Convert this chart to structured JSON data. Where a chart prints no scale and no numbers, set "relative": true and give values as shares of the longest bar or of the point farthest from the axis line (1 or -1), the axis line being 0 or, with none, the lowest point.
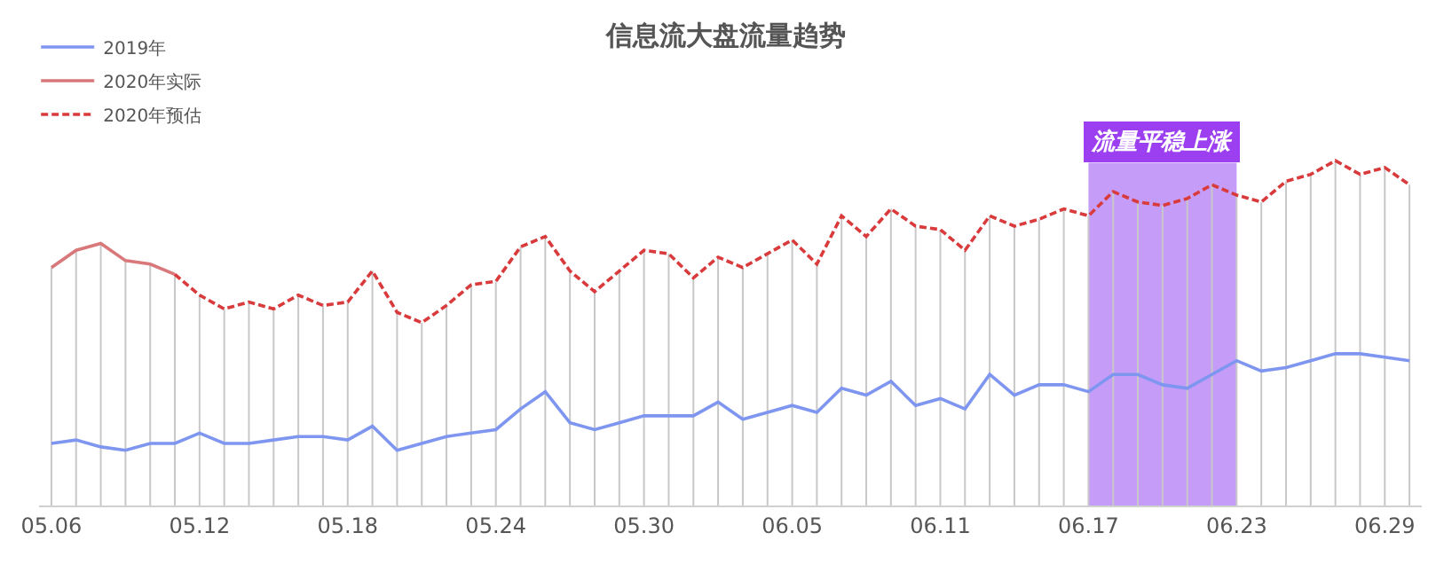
{
  "chart_data": {
    "type": "line",
    "title": "信息流大盘流量趋势",
    "relative": true,
    "categories": [
      "05.06",
      null,
      null,
      null,
      null,
      null,
      "05.12",
      null,
      null,
      null,
      null,
      null,
      "05.18",
      null,
      null,
      null,
      null,
      null,
      "05.24",
      null,
      null,
      null,
      null,
      null,
      "05.30",
      null,
      null,
      null,
      null,
      null,
      "06.05",
      null,
      null,
      null,
      null,
      null,
      "06.11",
      null,
      null,
      null,
      null,
      null,
      "06.17",
      null,
      null,
      null,
      null,
      null,
      "06.23",
      null,
      null,
      null,
      null,
      null,
      "06.29",
      null
    ],
    "series": [
      {
        "name": "2019年",
        "color": "#7f96f0",
        "line_style": "solid",
        "values": [
          0.18,
          0.19,
          0.17,
          0.16,
          0.18,
          0.18,
          0.21,
          0.18,
          0.18,
          0.19,
          0.2,
          0.2,
          0.19,
          0.23,
          0.16,
          0.18,
          0.2,
          0.21,
          0.22,
          0.28,
          0.33,
          0.24,
          0.22,
          0.24,
          0.26,
          0.26,
          0.26,
          0.3,
          0.25,
          0.27,
          0.29,
          0.27,
          0.34,
          0.32,
          0.36,
          0.29,
          0.31,
          0.28,
          0.38,
          0.32,
          0.35,
          0.35,
          0.33,
          0.38,
          0.38,
          0.35,
          0.34,
          0.38,
          0.42,
          0.39,
          0.4,
          0.42,
          0.44,
          0.44,
          0.43,
          0.42
        ]
      },
      {
        "name": "2020年实际",
        "color": "#d9787a",
        "line_style": "solid",
        "values": [
          0.69,
          0.74,
          0.76,
          0.71,
          0.7,
          0.67,
          null,
          null,
          null,
          null,
          null,
          null,
          null,
          null,
          null,
          null,
          null,
          null,
          null,
          null,
          null,
          null,
          null,
          null,
          null,
          null,
          null,
          null,
          null,
          null,
          null,
          null,
          null,
          null,
          null,
          null,
          null,
          null,
          null,
          null,
          null,
          null,
          null,
          null,
          null,
          null,
          null,
          null,
          null,
          null,
          null,
          null,
          null,
          null,
          null,
          null
        ]
      },
      {
        "name": "2020年预估",
        "color": "#d93a3c",
        "line_style": "dashed",
        "values": [
          null,
          null,
          null,
          null,
          null,
          0.67,
          0.61,
          0.57,
          0.59,
          0.57,
          0.61,
          0.58,
          0.59,
          0.68,
          0.56,
          0.53,
          0.58,
          0.64,
          0.65,
          0.75,
          0.78,
          0.68,
          0.62,
          0.68,
          0.74,
          0.73,
          0.66,
          0.72,
          0.69,
          0.73,
          0.77,
          0.7,
          0.84,
          0.78,
          0.86,
          0.81,
          0.8,
          0.74,
          0.84,
          0.81,
          0.83,
          0.86,
          0.84,
          0.91,
          0.88,
          0.87,
          0.89,
          0.93,
          0.9,
          0.88,
          0.94,
          0.96,
          1,
          0.96,
          0.98,
          0.93
        ]
      }
    ],
    "bands": [
      {
        "axis": "x",
        "from": "06.17",
        "to": "06.23",
        "label": "流量平稳上涨",
        "color": "#c59cf7"
      }
    ],
    "legend": "top left",
    "grid": "x"
  }
}
